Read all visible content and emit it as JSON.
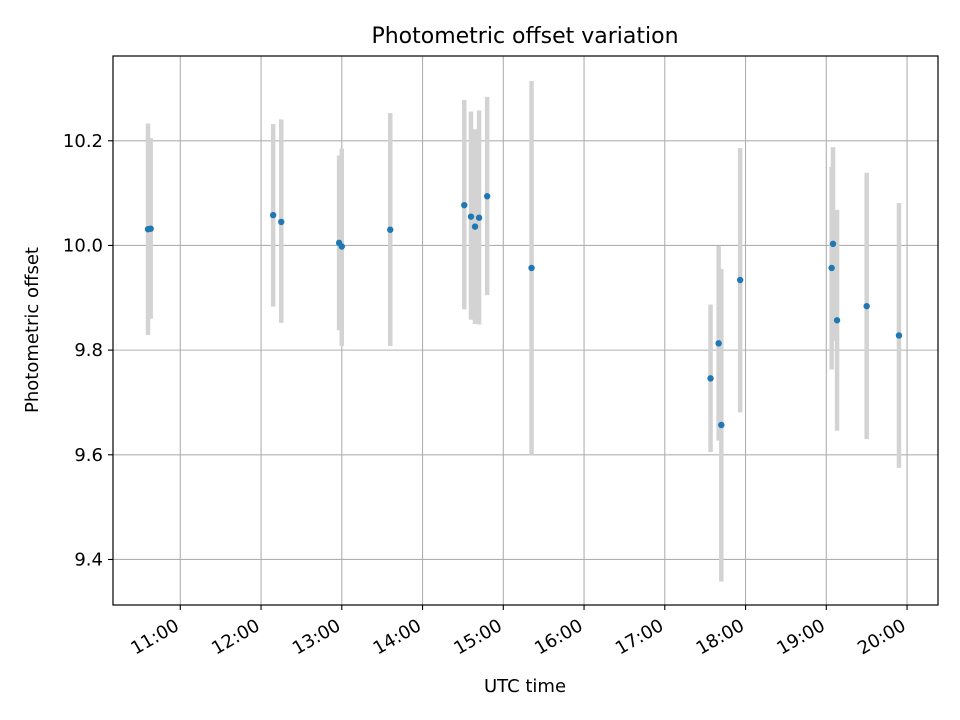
{
  "chart_data": {
    "type": "scatter",
    "title": "Photometric offset variation",
    "xlabel": "UTC time",
    "ylabel": "Photometric offset",
    "x_is_time": true,
    "xlim": [
      "10:10",
      "20:23"
    ],
    "ylim": [
      9.313,
      10.362
    ],
    "xticks": [
      "11:00",
      "12:00",
      "13:00",
      "14:00",
      "15:00",
      "16:00",
      "17:00",
      "18:00",
      "19:00",
      "20:00"
    ],
    "yticks": [
      9.4,
      9.6,
      9.8,
      10.0,
      10.2
    ],
    "ytick_labels": [
      "9.4",
      "9.6",
      "9.8",
      "10.0",
      "10.2"
    ],
    "grid": true,
    "colors": {
      "points": "#1f77b4",
      "errorbars": "#d3d3d3",
      "grid": "#b0b0b0"
    },
    "points": [
      {
        "x": "10:36",
        "y": 10.031,
        "ylo": 9.829,
        "yhi": 10.233
      },
      {
        "x": "10:38",
        "y": 10.032,
        "ylo": 9.86,
        "yhi": 10.205
      },
      {
        "x": "12:09",
        "y": 10.058,
        "ylo": 9.883,
        "yhi": 10.232
      },
      {
        "x": "12:15",
        "y": 10.045,
        "ylo": 9.852,
        "yhi": 10.241
      },
      {
        "x": "12:58",
        "y": 10.005,
        "ylo": 9.838,
        "yhi": 10.172
      },
      {
        "x": "13:00",
        "y": 9.998,
        "ylo": 9.808,
        "yhi": 10.185
      },
      {
        "x": "13:36",
        "y": 10.03,
        "ylo": 9.808,
        "yhi": 10.253
      },
      {
        "x": "14:31",
        "y": 10.077,
        "ylo": 9.878,
        "yhi": 10.278
      },
      {
        "x": "14:36",
        "y": 10.055,
        "ylo": 9.858,
        "yhi": 10.256
      },
      {
        "x": "14:39",
        "y": 10.036,
        "ylo": 9.85,
        "yhi": 10.222
      },
      {
        "x": "14:42",
        "y": 10.053,
        "ylo": 9.849,
        "yhi": 10.258
      },
      {
        "x": "14:48",
        "y": 10.094,
        "ylo": 9.905,
        "yhi": 10.284
      },
      {
        "x": "15:21",
        "y": 9.957,
        "ylo": 9.6,
        "yhi": 10.314
      },
      {
        "x": "17:34",
        "y": 9.746,
        "ylo": 9.605,
        "yhi": 9.887
      },
      {
        "x": "17:40",
        "y": 9.813,
        "ylo": 9.627,
        "yhi": 9.999
      },
      {
        "x": "17:42",
        "y": 9.657,
        "ylo": 9.358,
        "yhi": 9.955
      },
      {
        "x": "17:56",
        "y": 9.934,
        "ylo": 9.681,
        "yhi": 10.186
      },
      {
        "x": "19:04",
        "y": 9.957,
        "ylo": 9.763,
        "yhi": 10.15
      },
      {
        "x": "19:05",
        "y": 10.003,
        "ylo": 9.818,
        "yhi": 10.188
      },
      {
        "x": "19:08",
        "y": 9.857,
        "ylo": 9.646,
        "yhi": 10.068
      },
      {
        "x": "19:30",
        "y": 9.884,
        "ylo": 9.63,
        "yhi": 10.139
      },
      {
        "x": "19:54",
        "y": 9.828,
        "ylo": 9.575,
        "yhi": 10.081
      }
    ]
  }
}
